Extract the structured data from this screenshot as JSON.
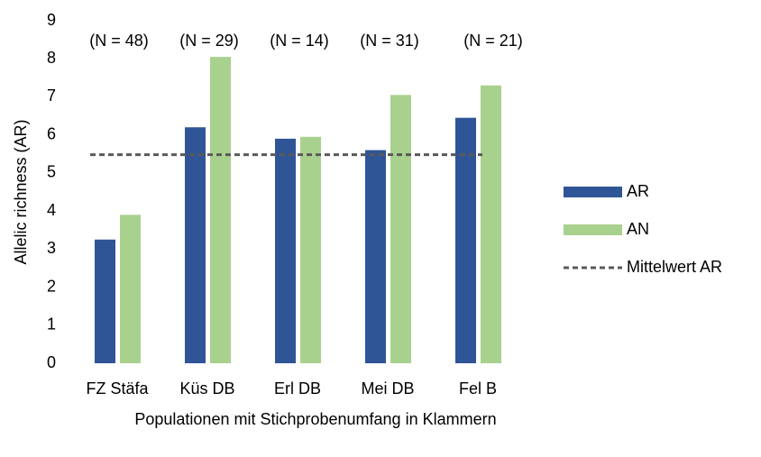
{
  "chart_data": {
    "type": "bar",
    "categories": [
      "FZ Stäfa",
      "Küs DB",
      "Erl DB",
      "Mei DB",
      "Fel B"
    ],
    "annotations": [
      "(N = 48)",
      "(N = 29)",
      "(N = 14)",
      "(N = 31)",
      "(N = 21)"
    ],
    "series": [
      {
        "name": "AR",
        "color": "#2f5597",
        "values": [
          3.25,
          6.2,
          5.9,
          5.6,
          6.45
        ]
      },
      {
        "name": "AN",
        "color": "#a9d18e",
        "values": [
          3.9,
          8.05,
          5.95,
          7.05,
          7.3
        ]
      }
    ],
    "reference_line": {
      "name": "Mittelwert AR",
      "value": 5.48,
      "color": "#595959",
      "dashed": true
    },
    "y_label": "Allelic richness (AR)",
    "x_label": "Populationen mit Stichprobenumfang in Klammern",
    "ylim": [
      0,
      9
    ],
    "yticks": [
      0,
      1,
      2,
      3,
      4,
      5,
      6,
      7,
      8,
      9
    ],
    "grid": false,
    "legend": "right"
  }
}
